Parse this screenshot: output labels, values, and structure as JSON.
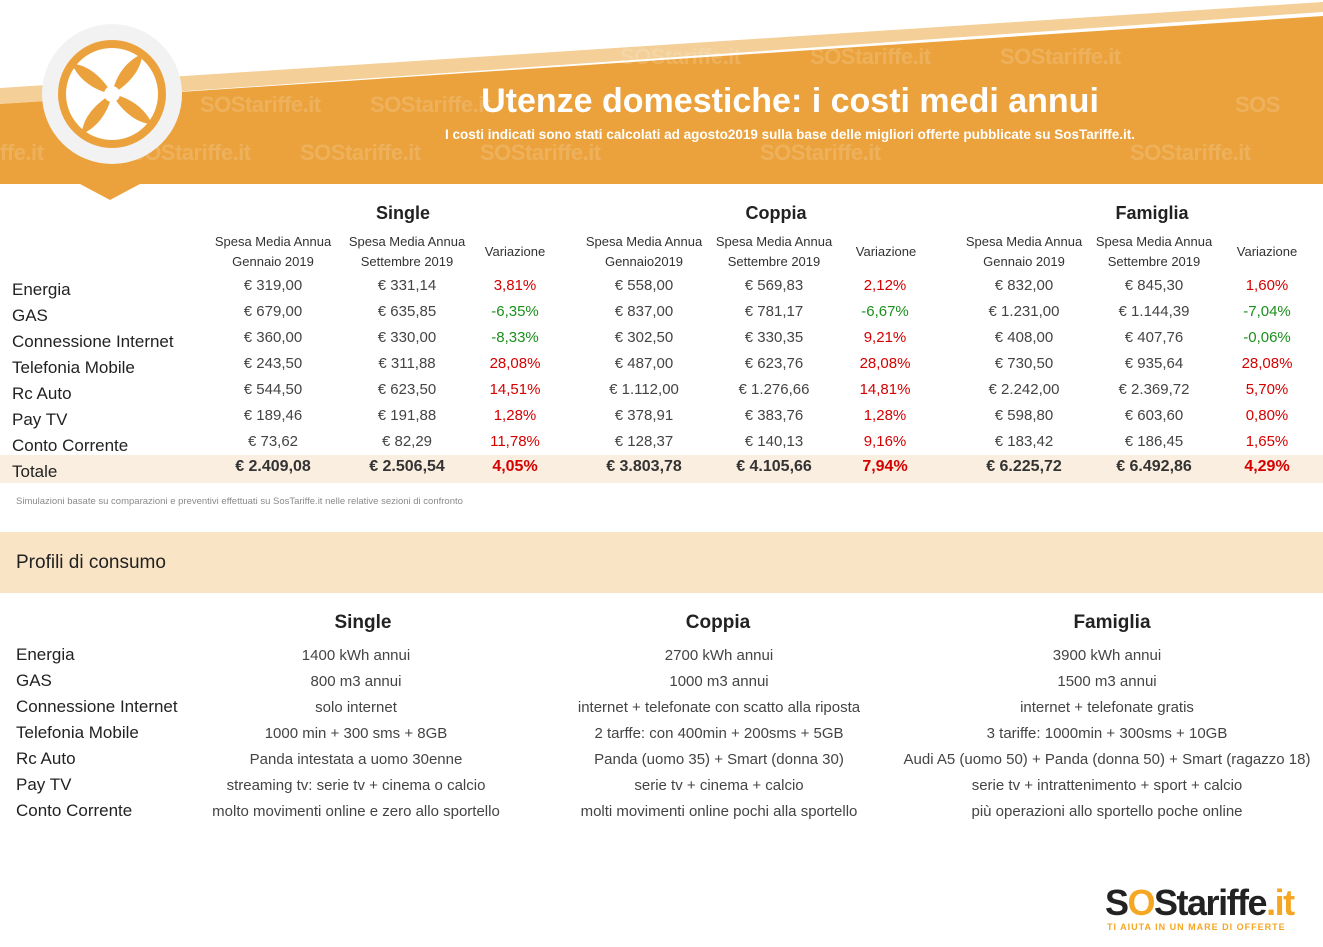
{
  "header": {
    "title": "Utenze domestiche: i costi medi annui",
    "subtitle": "I costi indicati sono stati calcolati ad agosto2019 sulla base delle migliori offerte pubblicate su SosTariffe.it.",
    "watermark": "SOStariffe.it",
    "accent_color": "#eba23c",
    "icon": "lifebuoy-icon"
  },
  "costs": {
    "groups": [
      {
        "name": "Single",
        "col1": "Spesa Media  Annua Gennaio 2019",
        "col2": "Spesa Media Annua Settembre 2019",
        "col3": "Variazione",
        "rows": [
          [
            "€ 319,00",
            "€ 331,14",
            "3,81%"
          ],
          [
            "€ 679,00",
            "€ 635,85",
            "-6,35%"
          ],
          [
            "€ 360,00",
            "€ 330,00",
            "-8,33%"
          ],
          [
            "€ 243,50",
            "€ 311,88",
            "28,08%"
          ],
          [
            "€ 544,50",
            "€ 623,50",
            "14,51%"
          ],
          [
            "€ 189,46",
            "€ 191,88",
            "1,28%"
          ],
          [
            "€ 73,62",
            "€ 82,29",
            "11,78%"
          ]
        ],
        "total": [
          "€ 2.409,08",
          "€ 2.506,54",
          "4,05%"
        ]
      },
      {
        "name": "Coppia",
        "col1": "Spesa Media Annua Gennaio2019",
        "col2": "Spesa Media Annua Settembre 2019",
        "col3": "Variazione",
        "rows": [
          [
            "€ 558,00",
            "€ 569,83",
            "2,12%"
          ],
          [
            "€ 837,00",
            "€ 781,17",
            "-6,67%"
          ],
          [
            "€ 302,50",
            "€ 330,35",
            "9,21%"
          ],
          [
            "€ 487,00",
            "€ 623,76",
            "28,08%"
          ],
          [
            "€ 1.112,00",
            "€ 1.276,66",
            "14,81%"
          ],
          [
            "€ 378,91",
            "€ 383,76",
            "1,28%"
          ],
          [
            "€ 128,37",
            "€ 140,13",
            "9,16%"
          ]
        ],
        "total": [
          "€ 3.803,78",
          "€ 4.105,66",
          "7,94%"
        ]
      },
      {
        "name": "Famiglia",
        "col1": "Spesa Media Annua Gennaio 2019",
        "col2": "Spesa Media Annua Settembre 2019",
        "col3": "Variazione",
        "rows": [
          [
            "€ 832,00",
            "€ 845,30",
            "1,60%"
          ],
          [
            "€ 1.231,00",
            "€ 1.144,39",
            "-7,04%"
          ],
          [
            "€ 408,00",
            "€ 407,76",
            "-0,06%"
          ],
          [
            "€ 730,50",
            "€ 935,64",
            "28,08%"
          ],
          [
            "€ 2.242,00",
            "€ 2.369,72",
            "5,70%"
          ],
          [
            "€ 598,80",
            "€ 603,60",
            "0,80%"
          ],
          [
            "€ 183,42",
            "€ 186,45",
            "1,65%"
          ]
        ],
        "total": [
          "€ 6.225,72",
          "€ 6.492,86",
          "4,29%"
        ]
      }
    ],
    "row_labels": [
      "Energia",
      "GAS",
      "Connessione Internet",
      "Telefonia Mobile",
      "Rc Auto",
      "Pay TV",
      "Conto Corrente"
    ],
    "total_label": "Totale",
    "footnote": "Simulazioni basate su comparazioni e preventivi effettuati su SosTariffe.it nelle relative sezioni di confronto",
    "positive_color": "#d40000",
    "negative_color": "#1c8f1c"
  },
  "profili": {
    "title": "Profili di consumo",
    "groups": [
      "Single",
      "Coppia",
      "Famiglia"
    ],
    "row_labels": [
      "Energia",
      "GAS",
      "Connessione Internet",
      "Telefonia Mobile",
      "Rc Auto",
      "Pay TV",
      "Conto Corrente"
    ],
    "rows": [
      [
        "1400 kWh annui",
        "2700 kWh annui",
        "3900 kWh annui"
      ],
      [
        "800 m3 annui",
        "1000 m3 annui",
        "1500 m3 annui"
      ],
      [
        "solo internet",
        "internet + telefonate con scatto alla riposta",
        "internet + telefonate gratis"
      ],
      [
        "1000 min + 300 sms + 8GB",
        "2 tarffe: con 400min + 200sms + 5GB",
        "3 tariffe: 1000min + 300sms + 10GB"
      ],
      [
        "Panda intestata a uomo 30enne",
        "Panda (uomo 35) + Smart (donna 30)",
        "Audi A5 (uomo 50) + Panda (donna 50) + Smart (ragazzo 18)"
      ],
      [
        "streaming tv: serie tv + cinema o calcio",
        "serie tv + cinema + calcio",
        "serie tv + intrattenimento + sport + calcio"
      ],
      [
        "molto movimenti online e zero allo sportello",
        "molti movimenti online pochi alla sportello",
        "più operazioni allo sportello poche online"
      ]
    ]
  },
  "brand": {
    "name_prefix": "S",
    "name_o": "O",
    "name_mid": "S",
    "name_rest": "tariffe",
    "name_tld": ".it",
    "tagline": "TI AIUTA IN UN MARE DI OFFERTE"
  }
}
